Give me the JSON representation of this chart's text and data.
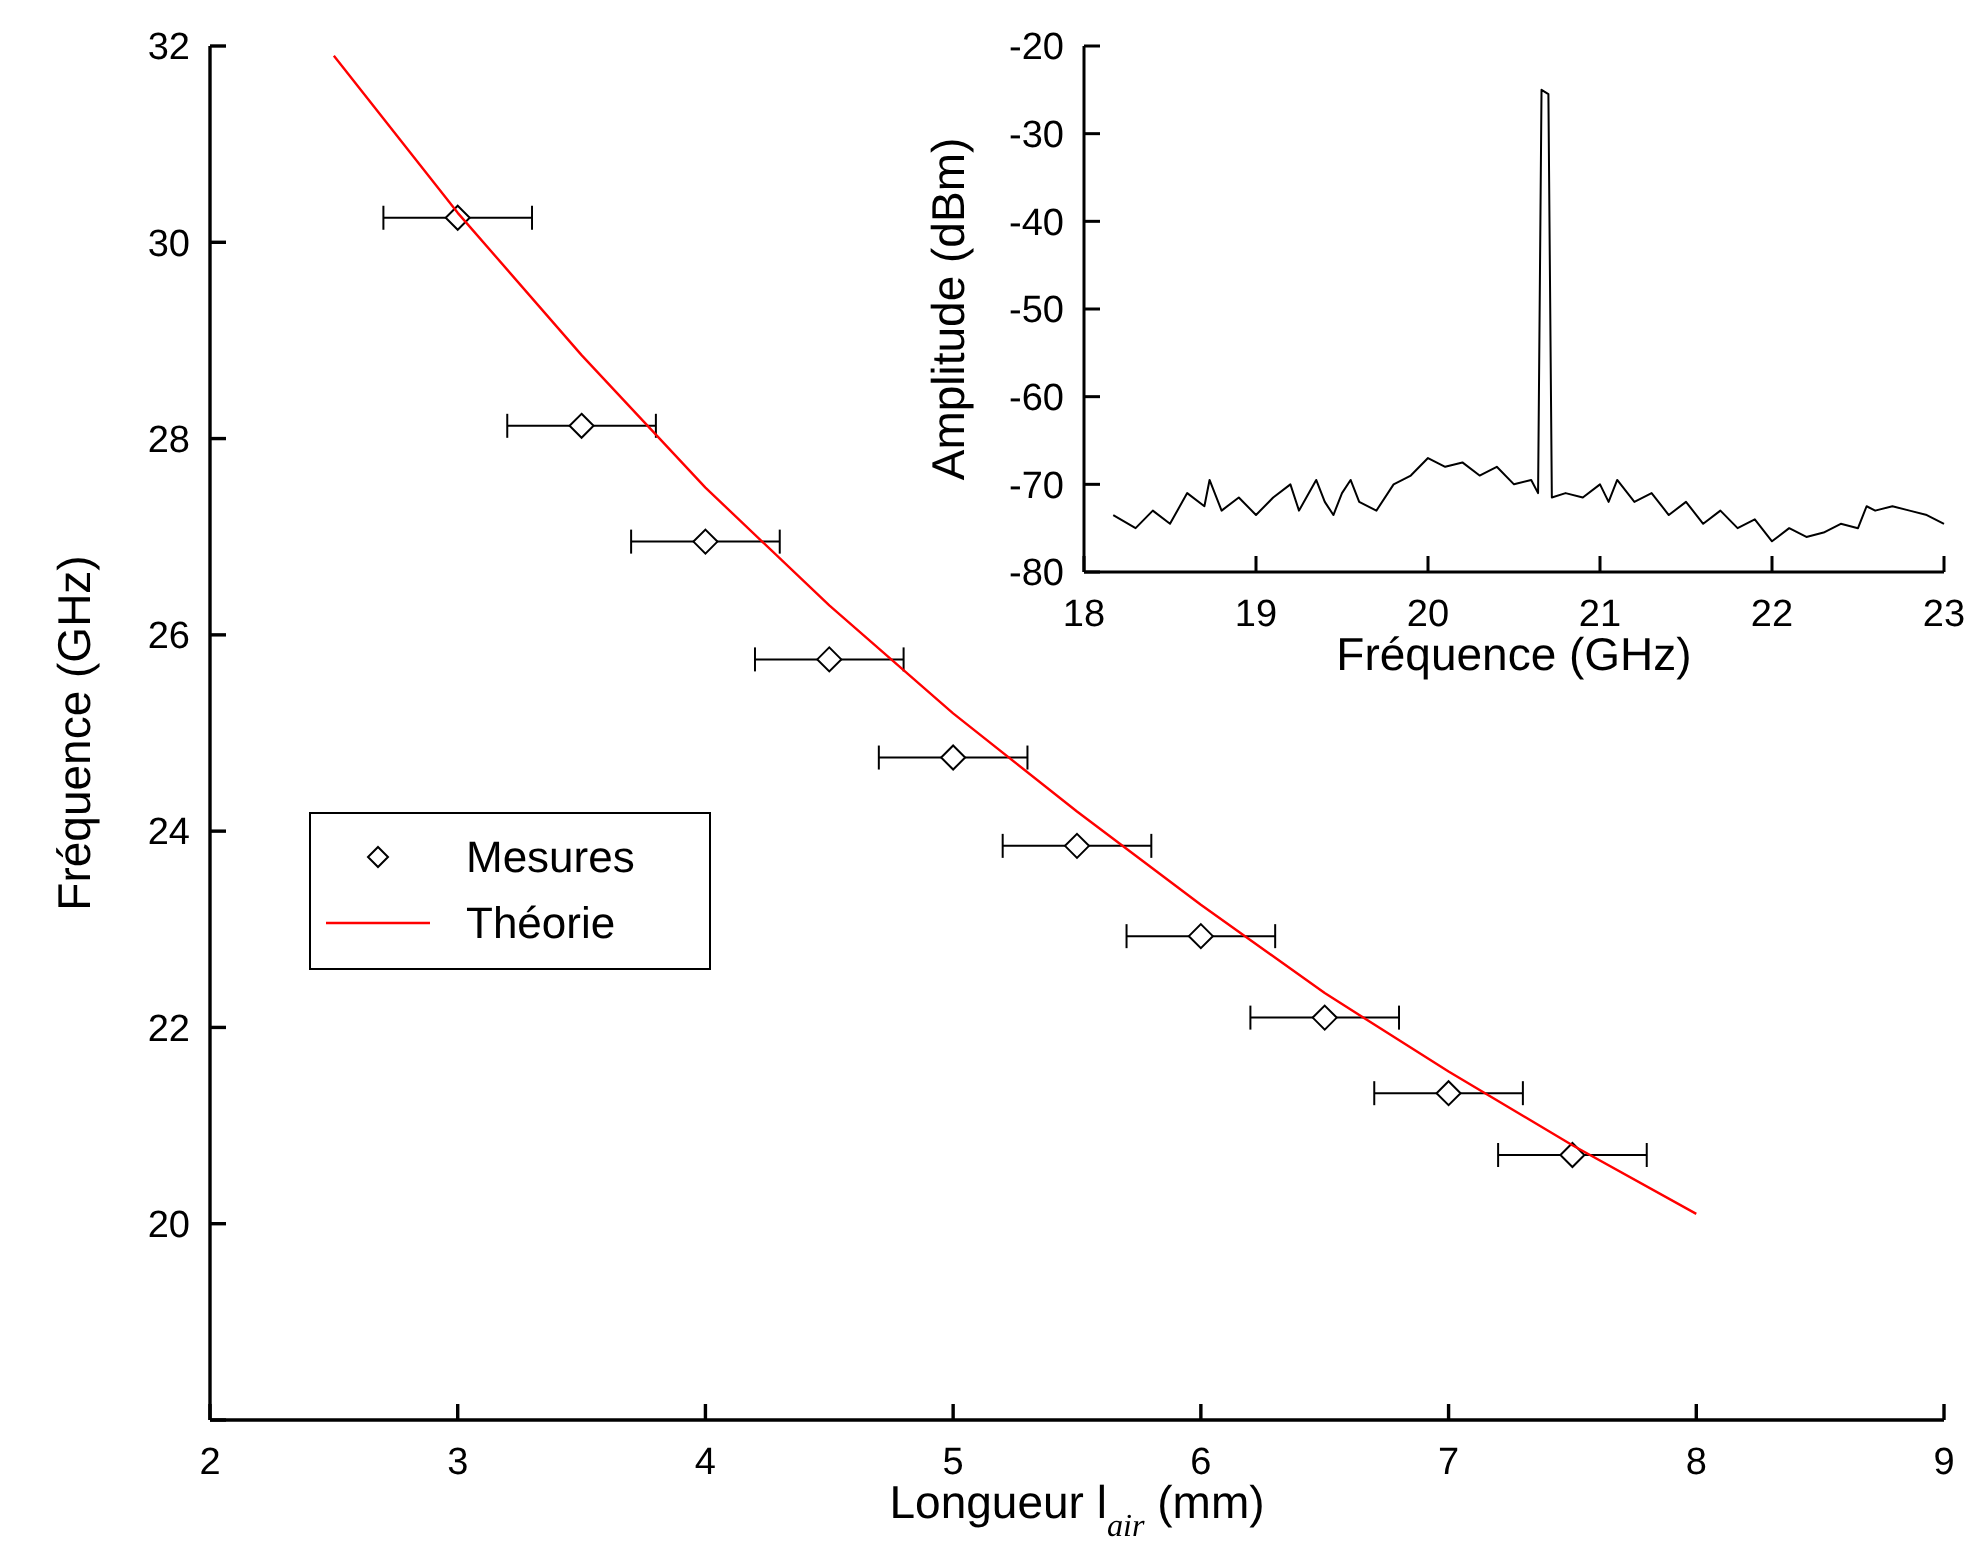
{
  "chart_data": [
    {
      "type": "scatter",
      "xlabel": "Longueur l$_{air}$ (mm)",
      "ylabel": "Fréquence (GHz)",
      "xlim": [
        2,
        9
      ],
      "xticks": [
        2,
        3,
        4,
        5,
        6,
        7,
        8,
        9
      ],
      "ylim": [
        18,
        32
      ],
      "yticks": [
        {
          "value": 18,
          "label": null
        },
        20,
        22,
        24,
        26,
        28,
        30,
        32
      ],
      "legend": "left",
      "grid": false,
      "series": [
        {
          "name": "Mesures",
          "color": "#000000",
          "marker": "diamond",
          "x": [
            3,
            3.5,
            4,
            4.5,
            5,
            5.5,
            6,
            6.5,
            7,
            7.5
          ],
          "values": [
            30.25,
            28.13,
            26.95,
            25.75,
            24.75,
            23.85,
            22.93,
            22.1,
            21.33,
            20.7
          ],
          "xerrors": [
            0.3,
            0.3,
            0.3,
            0.3,
            0.3,
            0.3,
            0.3,
            0.3,
            0.3,
            0.3
          ]
        },
        {
          "name": "Théorie",
          "type": "line",
          "color": "#ff0000",
          "marker": "none",
          "x": [
            2.5,
            3,
            3.5,
            4,
            4.5,
            5,
            5.5,
            6,
            6.5,
            7,
            7.5,
            8
          ],
          "values": [
            31.9,
            30.3,
            28.85,
            27.5,
            26.3,
            25.2,
            24.2,
            23.25,
            22.35,
            21.55,
            20.8,
            20.1
          ]
        }
      ]
    },
    {
      "type": "line",
      "xlabel": "Fréquence (GHz)",
      "ylabel": "Amplitude (dBm)",
      "xlim": [
        18,
        23
      ],
      "xticks": [
        18,
        19,
        20,
        21,
        22,
        23
      ],
      "ylim": [
        -80,
        -20
      ],
      "yticks": [
        -80,
        -70,
        -60,
        -50,
        -40,
        -30,
        -20
      ],
      "grid": false,
      "legend": false,
      "series": [
        {
          "color": "#000000",
          "marker": "none",
          "x": [
            18.17,
            18.3,
            18.4,
            18.5,
            18.6,
            18.7,
            18.73,
            18.8,
            18.9,
            19.0,
            19.1,
            19.2,
            19.25,
            19.35,
            19.4,
            19.45,
            19.5,
            19.55,
            19.6,
            19.7,
            19.8,
            19.9,
            20.0,
            20.1,
            20.2,
            20.3,
            20.4,
            20.5,
            20.6,
            20.64,
            20.66,
            20.7,
            20.72,
            20.8,
            20.9,
            21.0,
            21.05,
            21.1,
            21.2,
            21.3,
            21.4,
            21.5,
            21.6,
            21.7,
            21.8,
            21.9,
            22.0,
            22.1,
            22.2,
            22.3,
            22.4,
            22.5,
            22.55,
            22.6,
            22.7,
            22.8,
            22.9,
            23.0
          ],
          "values": [
            -73.5,
            -75,
            -73,
            -74.5,
            -71,
            -72.5,
            -69.5,
            -73,
            -71.5,
            -73.5,
            -71.5,
            -70,
            -73,
            -69.5,
            -72,
            -73.5,
            -71,
            -69.5,
            -72,
            -73,
            -70,
            -69,
            -67,
            -68,
            -67.5,
            -69,
            -68,
            -70,
            -69.5,
            -71,
            -25,
            -25.5,
            -71.5,
            -71,
            -71.5,
            -70,
            -72,
            -69.5,
            -72,
            -71,
            -73.5,
            -72,
            -74.5,
            -73,
            -75,
            -74,
            -76.5,
            -75,
            -76,
            -75.5,
            -74.5,
            -75,
            -72.5,
            -73,
            -72.5,
            -73,
            -73.5,
            -74.5
          ]
        }
      ]
    }
  ]
}
